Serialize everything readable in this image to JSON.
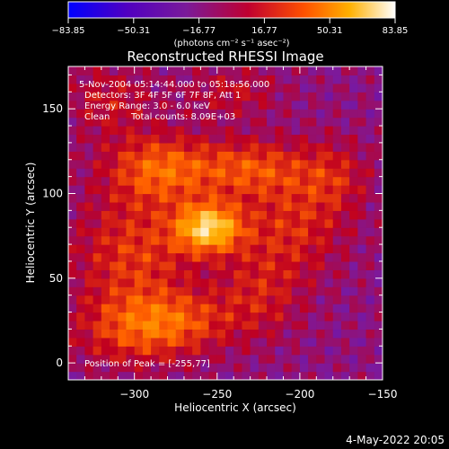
{
  "chart_data": {
    "type": "heatmap",
    "title": "Reconstructed RHESSI Image",
    "xlabel": "Heliocentric X (arcsec)",
    "ylabel": "Heliocentric Y (arcsec)",
    "xlim": [
      -340,
      -150
    ],
    "ylim": [
      -10,
      175
    ],
    "x_ticks": [
      -300,
      -250,
      -200,
      -150
    ],
    "x_tick_labels": [
      "−300",
      "−250",
      "−200",
      "−150"
    ],
    "y_ticks": [
      0,
      50,
      100,
      150
    ],
    "y_tick_labels": [
      "0",
      "50",
      "100",
      "150"
    ],
    "colorbar": {
      "min": -83.85,
      "max": 83.85,
      "ticks": [
        -83.85,
        -50.31,
        -16.77,
        16.77,
        50.31,
        83.85
      ],
      "tick_labels": [
        "−83.85",
        "−50.31",
        "−16.77",
        "16.77",
        "50.31",
        "83.85"
      ],
      "units_text": "(photons cm⁻² s⁻¹ asec⁻²)",
      "colors": [
        "#0000ff",
        "#5a00b0",
        "#7a1aa0",
        "#c00020",
        "#ff6000",
        "#ffb000",
        "#ffffff"
      ]
    },
    "peak": {
      "x": -255,
      "y": 77,
      "value": 83.85
    },
    "blobs": [
      {
        "x": -255,
        "y": 80,
        "sx": 14,
        "sy": 10,
        "amp": 83.85
      },
      {
        "x": -285,
        "y": 115,
        "sx": 22,
        "sy": 14,
        "amp": 45
      },
      {
        "x": -230,
        "y": 115,
        "sx": 25,
        "sy": 12,
        "amp": 40
      },
      {
        "x": -300,
        "y": 65,
        "sx": 25,
        "sy": 25,
        "amp": 35
      },
      {
        "x": -205,
        "y": 80,
        "sx": 22,
        "sy": 20,
        "amp": 30
      },
      {
        "x": -300,
        "y": 20,
        "sx": 25,
        "sy": 15,
        "amp": 35
      },
      {
        "x": -270,
        "y": 25,
        "sx": 22,
        "sy": 12,
        "amp": 28
      },
      {
        "x": -180,
        "y": 110,
        "sx": 15,
        "sy": 15,
        "amp": 25
      },
      {
        "x": -315,
        "y": 155,
        "sx": 18,
        "sy": 15,
        "amp": 22
      },
      {
        "x": -240,
        "y": 160,
        "sx": 20,
        "sy": 10,
        "amp": 20
      },
      {
        "x": -225,
        "y": 40,
        "sx": 18,
        "sy": 18,
        "amp": 25
      }
    ]
  },
  "annotations": {
    "time_range": "5-Nov-2004 05:14:44.000 to 05:18:56.000",
    "detectors": "Detectors: 3F 4F 5F 6F 7F 8F, Att 1",
    "energy": "Energy Range: 3.0 - 6.0 keV",
    "clean_label": "Clean",
    "total_counts": "Total counts: 8.09E+03",
    "peak_position": "Position of Peak = [-255,77]"
  },
  "footer_date": "4-May-2022 20:05"
}
